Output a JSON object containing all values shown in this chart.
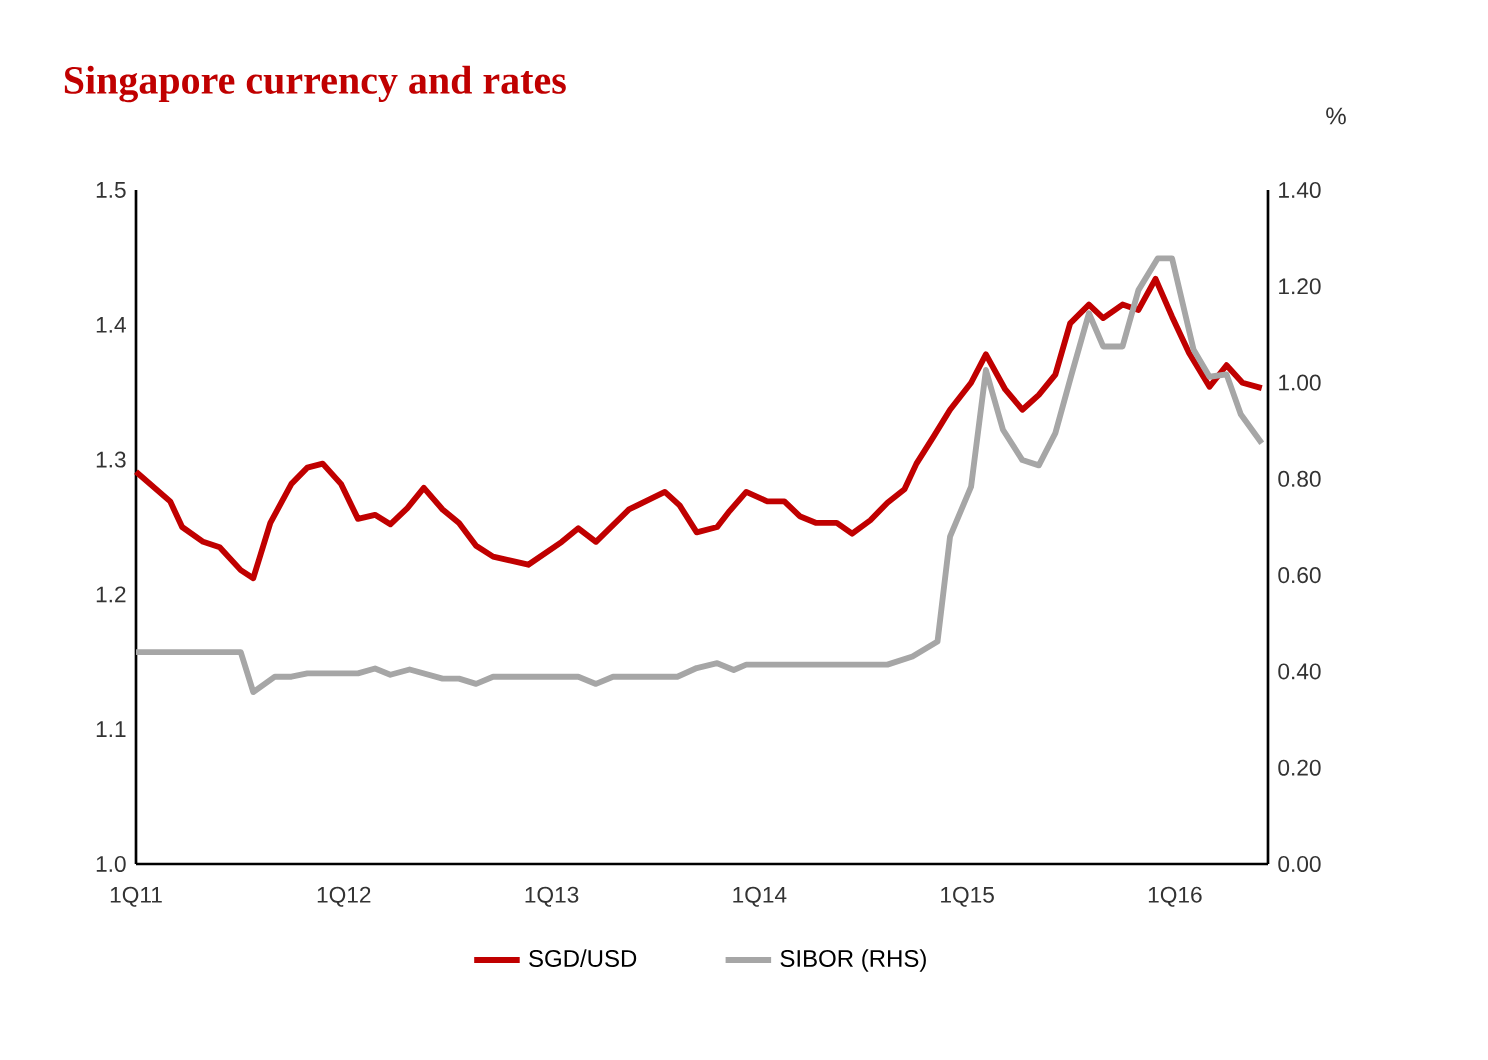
{
  "chart_data": {
    "type": "line",
    "title": "Singapore currency and rates",
    "y2label": "%",
    "xlim": [
      "2011-01-01",
      "2016-06-13"
    ],
    "xticks": [
      {
        "value": "2011-01-01",
        "label": "1Q11"
      },
      {
        "value": "2012-01-01",
        "label": "1Q12"
      },
      {
        "value": "2013-01-01",
        "label": "1Q13"
      },
      {
        "value": "2014-01-01",
        "label": "1Q14"
      },
      {
        "value": "2015-01-01",
        "label": "1Q15"
      },
      {
        "value": "2016-01-01",
        "label": "1Q16"
      }
    ],
    "ylim": [
      1.0,
      1.5
    ],
    "yticks": [
      {
        "value": 1.0,
        "label": "1.0"
      },
      {
        "value": 1.1,
        "label": "1.1"
      },
      {
        "value": 1.2,
        "label": "1.2"
      },
      {
        "value": 1.3,
        "label": "1.3"
      },
      {
        "value": 1.4,
        "label": "1.4"
      },
      {
        "value": 1.5,
        "label": "1.5"
      }
    ],
    "y2lim": [
      0,
      1.4
    ],
    "y2ticks": [
      {
        "value": 0,
        "label": "0.00"
      },
      {
        "value": 0.2,
        "label": "0.20"
      },
      {
        "value": 0.4,
        "label": "0.40"
      },
      {
        "value": 0.6,
        "label": "0.60"
      },
      {
        "value": 0.8,
        "label": "0.80"
      },
      {
        "value": 1.0,
        "label": "1.00"
      },
      {
        "value": 1.2,
        "label": "1.20"
      },
      {
        "value": 1.4,
        "label": "1.40"
      }
    ],
    "legend": "bottom",
    "line_style": "solid",
    "series": [
      {
        "name": "SGD/USD",
        "color": "#c00000",
        "x": [
          "2011-01-01",
          "2011-03-02",
          "2011-03-23",
          "2011-04-29",
          "2011-05-28",
          "2011-07-04",
          "2011-07-26",
          "2011-08-25",
          "2011-10-01",
          "2011-10-29",
          "2011-11-25",
          "2011-12-27",
          "2012-01-26",
          "2012-02-25",
          "2012-03-23",
          "2012-04-22",
          "2012-05-21",
          "2012-06-23",
          "2012-07-22",
          "2012-08-21",
          "2012-09-20",
          "2012-11-21",
          "2013-01-19",
          "2013-02-17",
          "2013-03-20",
          "2013-05-17",
          "2013-07-19",
          "2013-08-14",
          "2013-09-13",
          "2013-10-19",
          "2013-11-10",
          "2013-12-09",
          "2014-01-15",
          "2014-02-14",
          "2014-03-13",
          "2014-04-11",
          "2014-05-17",
          "2014-06-13",
          "2014-07-15",
          "2014-08-14",
          "2014-09-13",
          "2014-10-04",
          "2014-11-03",
          "2014-12-02",
          "2015-01-08",
          "2015-02-03",
          "2015-03-09",
          "2015-04-08",
          "2015-05-07",
          "2015-06-05",
          "2015-07-01",
          "2015-08-03",
          "2015-08-28",
          "2015-10-01",
          "2015-10-29",
          "2015-11-28",
          "2015-12-27",
          "2016-01-26",
          "2016-03-02",
          "2016-04-01",
          "2016-04-29",
          "2016-06-02"
        ],
        "values": [
          1.291,
          1.269,
          1.25,
          1.239,
          1.235,
          1.218,
          1.212,
          1.253,
          1.282,
          1.294,
          1.297,
          1.282,
          1.256,
          1.259,
          1.252,
          1.264,
          1.279,
          1.263,
          1.253,
          1.236,
          1.228,
          1.222,
          1.239,
          1.249,
          1.239,
          1.263,
          1.276,
          1.266,
          1.246,
          1.25,
          1.262,
          1.276,
          1.269,
          1.269,
          1.258,
          1.253,
          1.253,
          1.245,
          1.255,
          1.268,
          1.278,
          1.297,
          1.317,
          1.337,
          1.357,
          1.378,
          1.352,
          1.337,
          1.348,
          1.363,
          1.401,
          1.415,
          1.405,
          1.415,
          1.411,
          1.434,
          1.406,
          1.379,
          1.354,
          1.37,
          1.357,
          1.353
        ]
      },
      {
        "name": "SIBOR (RHS)",
        "color": "#a6a6a6",
        "axis": "y2",
        "x": [
          "2011-01-01",
          "2011-07-04",
          "2011-07-26",
          "2011-09-02",
          "2011-10-01",
          "2011-10-29",
          "2012-01-26",
          "2012-02-25",
          "2012-03-23",
          "2012-04-26",
          "2012-06-23",
          "2012-07-22",
          "2012-08-21",
          "2012-09-20",
          "2013-02-17",
          "2013-03-20",
          "2013-04-19",
          "2013-08-10",
          "2013-09-13",
          "2013-10-19",
          "2013-11-17",
          "2013-12-09",
          "2014-08-14",
          "2014-09-27",
          "2014-11-10",
          "2014-12-02",
          "2015-01-08",
          "2015-02-03",
          "2015-03-05",
          "2015-04-08",
          "2015-05-07",
          "2015-06-05",
          "2015-07-04",
          "2015-08-03",
          "2015-08-28",
          "2015-10-01",
          "2015-10-29",
          "2015-12-02",
          "2015-12-27",
          "2016-02-03",
          "2016-03-02",
          "2016-04-01",
          "2016-04-26",
          "2016-06-02"
        ],
        "values": [
          0.44,
          0.44,
          0.357,
          0.389,
          0.389,
          0.396,
          0.396,
          0.406,
          0.393,
          0.404,
          0.385,
          0.385,
          0.374,
          0.389,
          0.389,
          0.374,
          0.389,
          0.389,
          0.407,
          0.417,
          0.403,
          0.414,
          0.414,
          0.431,
          0.462,
          0.68,
          0.784,
          1.026,
          0.902,
          0.839,
          0.828,
          0.895,
          1.019,
          1.144,
          1.075,
          1.075,
          1.192,
          1.258,
          1.258,
          1.068,
          1.012,
          1.017,
          0.934,
          0.874
        ]
      }
    ]
  }
}
